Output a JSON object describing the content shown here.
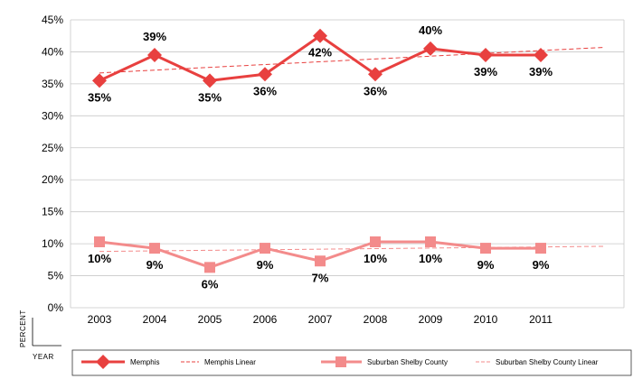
{
  "chart_data": {
    "type": "line",
    "x": [
      "2003",
      "2004",
      "2005",
      "2006",
      "2007",
      "2008",
      "2009",
      "2010",
      "2011"
    ],
    "ylim": [
      0,
      45
    ],
    "yticks": [
      "0%",
      "5%",
      "10%",
      "15%",
      "20%",
      "25%",
      "30%",
      "35%",
      "40%",
      "45%"
    ],
    "ylabel": "PERCENT",
    "xlabel": "YEAR",
    "series": [
      {
        "name": "Memphis",
        "marker": "diamond",
        "color": "#e8403f",
        "values": [
          35.5,
          39.5,
          35.5,
          36.5,
          42.5,
          36.5,
          40.5,
          39.5,
          39.5
        ],
        "labels": [
          "35%",
          "39%",
          "35%",
          "36%",
          "42%",
          "36%",
          "40%",
          "39%",
          "39%"
        ]
      },
      {
        "name": "Suburban Shelby County",
        "marker": "square",
        "color": "#f38b8b",
        "values": [
          10.3,
          9.3,
          6.3,
          9.3,
          7.3,
          10.3,
          10.3,
          9.3,
          9.3
        ],
        "labels": [
          "10%",
          "9%",
          "6%",
          "9%",
          "7%",
          "10%",
          "10%",
          "9%",
          "9%"
        ]
      }
    ],
    "trendlines": [
      {
        "name": "Memphis Linear",
        "of": "Memphis",
        "color": "#e8403f",
        "start": 36.7,
        "end": 40.7
      },
      {
        "name": "Suburban Shelby County Linear",
        "of": "Suburban Shelby County",
        "color": "#f38b8b",
        "start": 8.8,
        "end": 9.6
      }
    ],
    "legend": {
      "items": [
        "Memphis",
        "Memphis Linear",
        "Suburban Shelby County",
        "Suburban Shelby County Linear"
      ],
      "position": "bottom"
    }
  }
}
